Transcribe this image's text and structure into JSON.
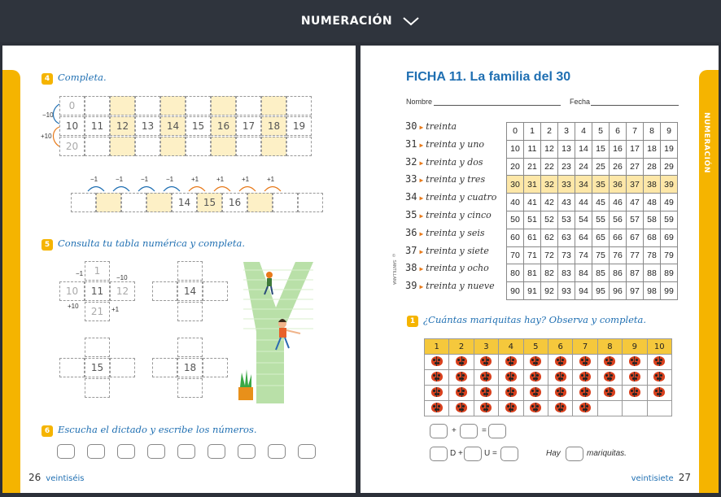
{
  "header": {
    "title": "NUMERACIÓN"
  },
  "left": {
    "ex4": {
      "badge": "4",
      "title": "Completa.",
      "grid_top": [
        "0",
        "",
        "",
        "",
        "",
        "",
        "",
        "",
        "",
        ""
      ],
      "grid_mid": [
        "10",
        "11",
        "12",
        "13",
        "14",
        "15",
        "16",
        "17",
        "18",
        "19"
      ],
      "grid_bot": [
        "20",
        "",
        "",
        "",
        "",
        "",
        "",
        "",
        "",
        ""
      ],
      "labels": {
        "minus10": "−10",
        "plus10": "+10"
      },
      "line_cells": [
        "",
        "",
        "",
        "",
        "14",
        "15",
        "16",
        "",
        "",
        ""
      ],
      "line_ops": [
        "−1",
        "−1",
        "−1",
        "−1",
        "+1",
        "+1",
        "+1",
        "+1"
      ]
    },
    "ex5": {
      "badge": "5",
      "title": "Consulta tu tabla numérica y completa.",
      "cross1": {
        "top": "1",
        "left": "10",
        "center": "11",
        "right": "12",
        "bottom": "21",
        "lbl_m1": "−1",
        "lbl_m10": "−10",
        "lbl_p10": "+10",
        "lbl_p1": "+1"
      },
      "cross2": {
        "center": "14"
      },
      "cross3": {
        "center": "15"
      },
      "cross4": {
        "center": "18"
      }
    },
    "ex6": {
      "badge": "6",
      "title": "Escucha el dictado y escribe los números."
    },
    "footer": {
      "number": "26",
      "word": "veintiséis"
    }
  },
  "right": {
    "title": "FICHA 11. La familia del 30",
    "nombre_label": "Nombre",
    "fecha_label": "Fecha",
    "side_tab": "NUMERACIÓN",
    "publisher_mark": "© SANTILLANA",
    "rows": [
      {
        "n": "30",
        "w": "treinta"
      },
      {
        "n": "31",
        "w": "treinta y uno"
      },
      {
        "n": "32",
        "w": "treinta y dos"
      },
      {
        "n": "33",
        "w": "treinta y tres"
      },
      {
        "n": "34",
        "w": "treinta y cuatro"
      },
      {
        "n": "35",
        "w": "treinta y cinco"
      },
      {
        "n": "36",
        "w": "treinta y seis"
      },
      {
        "n": "37",
        "w": "treinta y siete"
      },
      {
        "n": "38",
        "w": "treinta y ocho"
      },
      {
        "n": "39",
        "w": "treinta y nueve"
      }
    ],
    "ex1": {
      "badge": "1",
      "title": "¿Cuántas mariquitas hay? Observa y completa.",
      "columns": [
        "1",
        "2",
        "3",
        "4",
        "5",
        "6",
        "7",
        "8",
        "9",
        "10"
      ],
      "ladybug_rows": [
        10,
        10,
        10,
        7
      ],
      "plus": "+",
      "equals": "=",
      "d_label": "D +",
      "u_label": "U =",
      "hay": "Hay",
      "mariquitas": "mariquitas."
    },
    "footer": {
      "number": "27",
      "word": "veintisiete"
    }
  }
}
